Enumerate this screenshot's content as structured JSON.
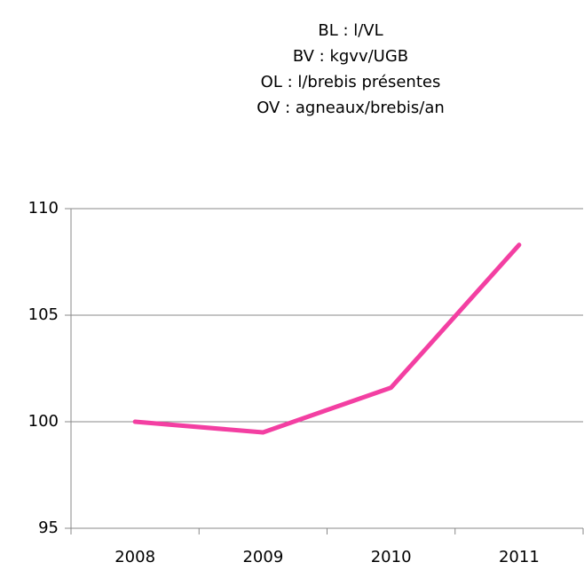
{
  "chart_data": {
    "type": "line",
    "title": [
      "BL : l/VL",
      "BV : kgvv/UGB",
      "OL : l/brebis présentes",
      "OV : agneaux/brebis/an"
    ],
    "categories": [
      "2008",
      "2009",
      "2010",
      "2011"
    ],
    "series": [
      {
        "name": null,
        "color": "#f33fa2",
        "values": [
          100,
          99.5,
          101.6,
          108.3
        ]
      }
    ],
    "ylim": [
      95,
      110
    ],
    "yticks": [
      95,
      100,
      105,
      110
    ],
    "grid": true
  }
}
